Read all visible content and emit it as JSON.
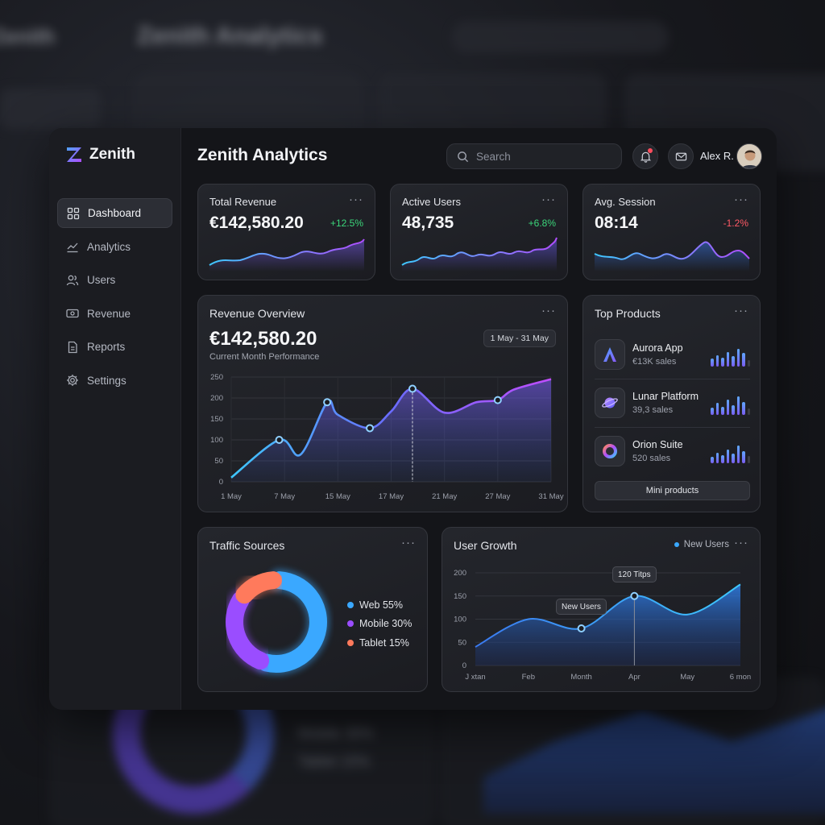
{
  "app": {
    "brand": "Zenith",
    "title": "Zenith Analytics",
    "search_placeholder": "Search",
    "user_name": "Alex R."
  },
  "sidebar": {
    "items": [
      {
        "label": "Dashboard",
        "icon": "grid-icon",
        "active": true
      },
      {
        "label": "Analytics",
        "icon": "line-chart-icon",
        "active": false
      },
      {
        "label": "Users",
        "icon": "users-icon",
        "active": false
      },
      {
        "label": "Revenue",
        "icon": "cash-icon",
        "active": false
      },
      {
        "label": "Reports",
        "icon": "document-icon",
        "active": false
      },
      {
        "label": "Settings",
        "icon": "gear-icon",
        "active": false
      }
    ]
  },
  "stats": [
    {
      "title": "Total Revenue",
      "value": "€142,580.20",
      "change": "+12.5%",
      "trend": "up",
      "more": "···"
    },
    {
      "title": "Active Users",
      "value": "48,735",
      "change": "+6.8%",
      "trend": "up",
      "more": "···"
    },
    {
      "title": "Avg. Session",
      "value": "08:14",
      "change": "-1.2%",
      "trend": "down",
      "more": "···"
    }
  ],
  "revenue_overview": {
    "title": "Revenue Overview",
    "more": "···",
    "value": "€142,580.20",
    "subtitle": "Current Month Performance",
    "range": "1 May - 31 May"
  },
  "top_products": {
    "title": "Top Products",
    "more": "···",
    "items": [
      {
        "name": "Aurora App",
        "sales": "€13K sales",
        "icon": "aurora-a-icon",
        "bars": [
          10,
          14,
          11,
          18,
          13,
          22,
          17,
          8
        ]
      },
      {
        "name": "Lunar Platform",
        "sales": "39,3 sales",
        "icon": "planet-icon",
        "bars": [
          9,
          15,
          10,
          19,
          12,
          23,
          16,
          8
        ]
      },
      {
        "name": "Orion Suite",
        "sales": "520 sales",
        "icon": "ring-icon",
        "bars": [
          8,
          13,
          10,
          17,
          12,
          22,
          15,
          9
        ]
      }
    ],
    "button": "Mini products"
  },
  "traffic_sources": {
    "title": "Traffic Sources",
    "more": "···",
    "legend": [
      {
        "label": "Web 55%",
        "color": "#3aa8ff"
      },
      {
        "label": "Mobile 30%",
        "color": "#9a4dff"
      },
      {
        "label": "Tablet 15%",
        "color": "#ff7a5c"
      }
    ]
  },
  "user_growth": {
    "title": "User Growth",
    "more": "···",
    "legend": "New Users",
    "tooltip_1": "New Users",
    "tooltip_2": "120 Titps"
  },
  "ghost": {
    "legend_mobile": "Mobile 30%",
    "legend_tablet": "Tablet 15%"
  },
  "chart_data": [
    {
      "type": "area",
      "title": "Revenue Overview",
      "categories": [
        "1 May",
        "7 May",
        "15 May",
        "17 May",
        "21 May",
        "27 May",
        "31 May"
      ],
      "yticks": [
        0,
        50,
        100,
        150,
        200,
        250
      ],
      "ylim": [
        0,
        250
      ],
      "x": [
        0,
        0.9,
        1.3,
        1.8,
        2,
        2.6,
        3,
        3.4,
        4,
        4.6,
        5,
        5.3,
        6
      ],
      "values": [
        10,
        100,
        65,
        190,
        160,
        128,
        168,
        222,
        165,
        190,
        195,
        220,
        245
      ],
      "markers": [
        1,
        3,
        5,
        7,
        10
      ],
      "grid": true
    },
    {
      "type": "area",
      "title": "User Growth",
      "categories": [
        "J xtan",
        "Feb",
        "Month",
        "Apr",
        "May",
        "6 mon"
      ],
      "yticks": [
        0,
        50,
        100,
        150,
        200
      ],
      "ylim": [
        0,
        200
      ],
      "values": [
        40,
        100,
        80,
        150,
        110,
        175
      ],
      "markers": [
        2,
        3
      ],
      "series": [
        {
          "name": "New Users"
        }
      ],
      "grid": true
    },
    {
      "type": "pie",
      "title": "Traffic Sources",
      "categories": [
        "Web",
        "Mobile",
        "Tablet"
      ],
      "values": [
        55,
        30,
        15
      ]
    }
  ]
}
